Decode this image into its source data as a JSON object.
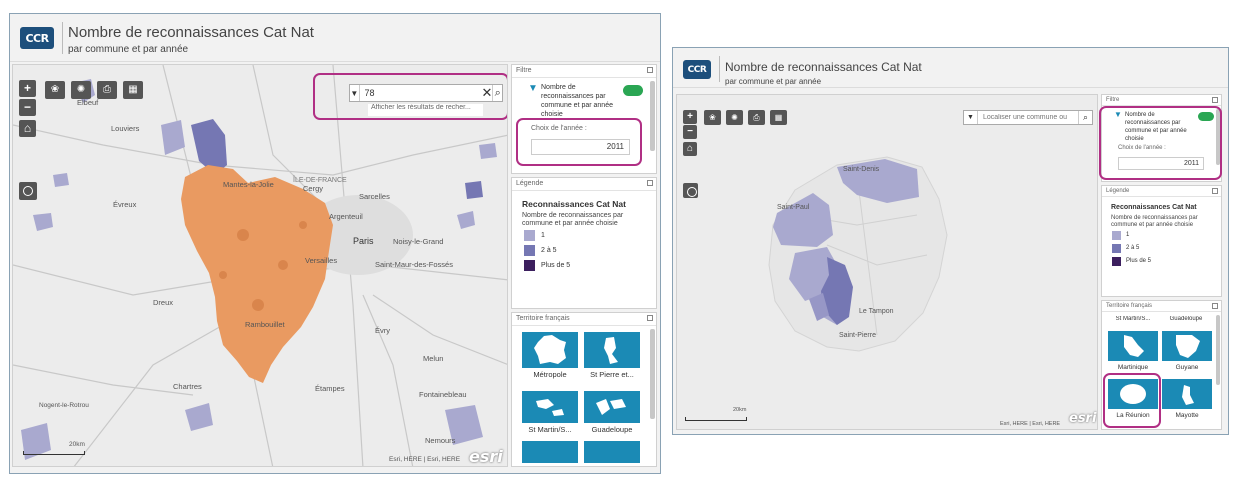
{
  "colors": {
    "header_bg": "#f2f2f2",
    "logo_bg": "#1d4f7c",
    "highlight": "#b02f84",
    "toggle_on": "#2aa653",
    "legend_1": "#a9a9cf",
    "legend_2_5": "#7577b3",
    "legend_plus5": "#3c1f5e",
    "selected_dept": "#e99a61",
    "tile_bg": "#1b8ab5"
  },
  "left": {
    "logo": "CCR",
    "title": "Nombre de reconnaissances Cat Nat",
    "subtitle": "par commune et par année",
    "search": {
      "value": "78",
      "hint": "Afficher les résultats de recher..."
    },
    "filter": {
      "panel_title": "Filtre",
      "label": "Nombre de reconnaissances par commune et par année choisie",
      "year_label": "Choix de l'année :",
      "year_value": "2011"
    },
    "legend": {
      "panel_title": "Légende",
      "title": "Reconnaissances Cat Nat",
      "subtitle": "Nombre de reconnaissances par commune et par année choisie",
      "items": [
        "1",
        "2 à 5",
        "Plus de 5"
      ]
    },
    "territories": {
      "panel_title": "Territoire français",
      "items": [
        "Métropole",
        "St Pierre et...",
        "St Martin/S...",
        "Guadeloupe"
      ]
    },
    "map_labels": {
      "ile_de_france": "ÎLE-DE-FRANCE",
      "cergy": "Cergy",
      "sarcelles": "Sarcelles",
      "argenteuil": "Argenteuil",
      "paris": "Paris",
      "noisy": "Noisy-le-Grand",
      "versailles": "Versailles",
      "st_maur": "Saint-Maur-des-Fossés",
      "mantes": "Mantes-la-Jolie",
      "evreux": "Évreux",
      "dreux": "Dreux",
      "rambouillet": "Rambouillet",
      "evry": "Évry",
      "melun": "Melun",
      "chartres": "Chartres",
      "etampes": "Étampes",
      "fontainebleau": "Fontainebleau",
      "nemours": "Nemours",
      "louviers": "Louviers",
      "elbeuf": "Elbeuf",
      "nogent": "Nogent-le-Rotrou"
    },
    "scale": "20km",
    "attribution": "Esri, HERE | Esri, HERE",
    "esri": "esri"
  },
  "right": {
    "logo": "CCR",
    "title": "Nombre de reconnaissances Cat Nat",
    "subtitle": "par commune et par année",
    "search": {
      "placeholder": "Localiser une commune ou"
    },
    "filter": {
      "panel_title": "Filtre",
      "label": "Nombre de reconnaissances par commune et par année choisie",
      "year_label": "Choix de l'année :",
      "year_value": "2011"
    },
    "legend": {
      "panel_title": "Légende",
      "title": "Reconnaissances Cat Nat",
      "subtitle": "Nombre de reconnaissances par commune et par année choisie",
      "items": [
        "1",
        "2 à 5",
        "Plus de 5"
      ]
    },
    "territories": {
      "panel_title": "Territoire français",
      "top_row": [
        "St Martin/S...",
        "Guadeloupe"
      ],
      "items": [
        "Martinique",
        "Guyane",
        "La Réunion",
        "Mayotte"
      ]
    },
    "map_labels": {
      "saint_denis": "Saint-Denis",
      "saint_paul": "Saint-Paul",
      "le_tampon": "Le Tampon",
      "saint_pierre": "Saint-Pierre"
    },
    "scale": "20km",
    "attribution": "Esri, HERE | Esri, HERE",
    "esri": "esri"
  }
}
